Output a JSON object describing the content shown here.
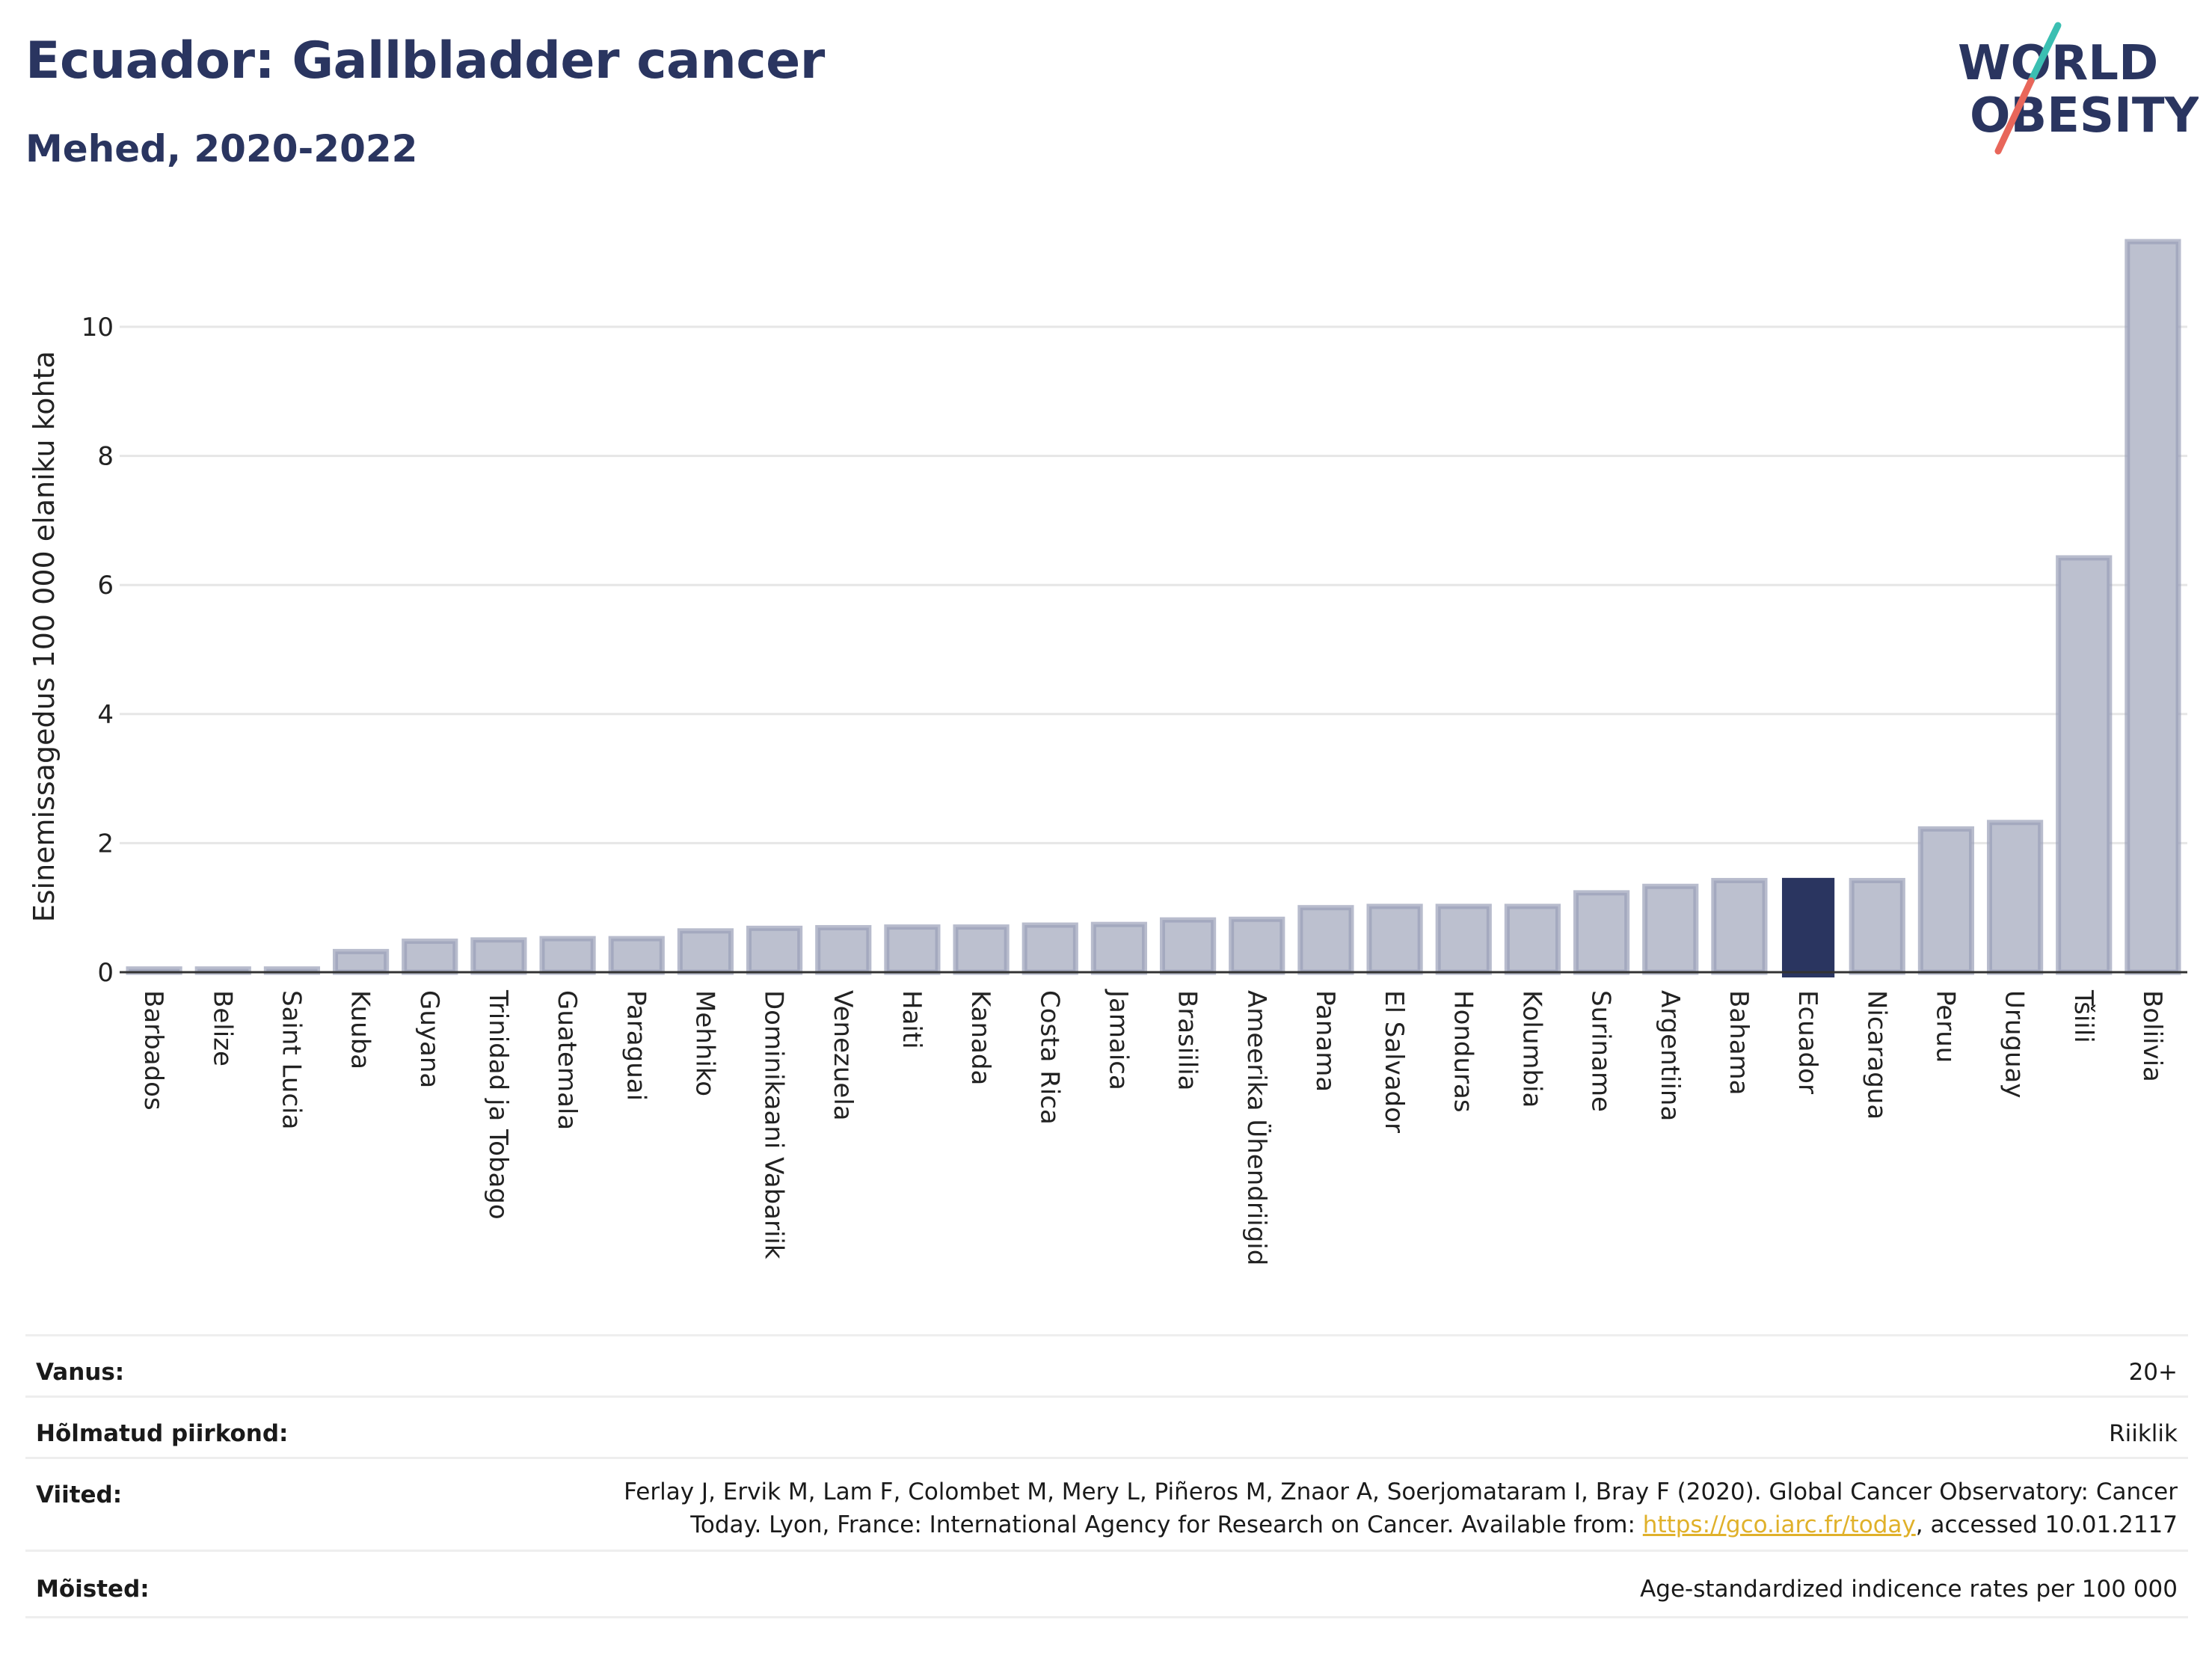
{
  "header": {
    "title": "Ecuador: Gallbladder cancer",
    "subtitle": "Mehed, 2020-2022"
  },
  "logo": {
    "line1": "WORLD",
    "line2": "OBESITY",
    "accent_teal": "#3bbfb2",
    "accent_red": "#e8665a",
    "text_color": "#2a3560"
  },
  "chart_data": {
    "type": "bar",
    "ylabel": "Esinemissagedus 100 000 elaniku kohta",
    "ylim": [
      0,
      11.5
    ],
    "yticks": [
      0,
      2,
      4,
      6,
      8,
      10
    ],
    "grid": true,
    "highlight": "Ecuador",
    "colors": {
      "bar": "#bcc0cf",
      "bar_edge": "#9aa0b8",
      "highlight": "#2a3560"
    },
    "categories": [
      "Barbados",
      "Belize",
      "Saint Lucia",
      "Kuuba",
      "Guyana",
      "Trinidad ja Tobago",
      "Guatemala",
      "Paraguai",
      "Mehhiko",
      "Dominikaani Vabariik",
      "Venezuela",
      "Haiti",
      "Kanada",
      "Costa Rica",
      "Jamaica",
      "Brasiilia",
      "Ameerika Ühendriigid",
      "Panama",
      "El Salvador",
      "Honduras",
      "Kolumbia",
      "Suriname",
      "Argentiina",
      "Bahama",
      "Ecuador",
      "Nicaragua",
      "Peruu",
      "Uruguay",
      "Tšiili",
      "Boliivia"
    ],
    "values": [
      0.05,
      0.05,
      0.05,
      0.32,
      0.48,
      0.5,
      0.52,
      0.52,
      0.64,
      0.68,
      0.69,
      0.7,
      0.7,
      0.73,
      0.74,
      0.81,
      0.82,
      1.0,
      1.02,
      1.02,
      1.02,
      1.23,
      1.33,
      1.42,
      1.45,
      1.42,
      2.22,
      2.32,
      6.42,
      11.32
    ]
  },
  "meta": {
    "age_label": "Vanus:",
    "age_value": "20+",
    "region_label": "Hõlmatud piirkond:",
    "region_value": "Riiklik",
    "ref_label": "Viited:",
    "ref_line1": "Ferlay J, Ervik M, Lam F, Colombet M, Mery L, Piñeros M, Znaor A, Soerjomataram I, Bray F (2020). Global Cancer Observatory: Cancer",
    "ref_line2_pre": "Today. Lyon, France: International Agency for Research on Cancer. Available from: ",
    "ref_link": "https://gco.iarc.fr/today",
    "ref_line2_post": ", accessed 10.01.2117",
    "def_label": "Mõisted:",
    "def_value": "Age-standardized indicence rates per 100 000"
  }
}
